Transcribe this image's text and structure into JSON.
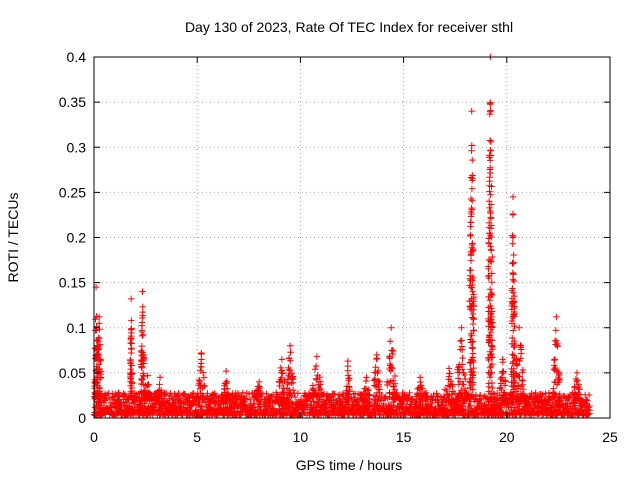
{
  "chart_data": {
    "type": "scatter",
    "title": "Day 130 of 2023, Rate Of TEC Index for receiver sthl",
    "xlabel": "GPS time / hours",
    "ylabel": "ROTI / TECUs",
    "xlim": [
      0,
      25
    ],
    "ylim": [
      0,
      0.4
    ],
    "xticks": [
      0,
      5,
      10,
      15,
      20,
      25
    ],
    "xtick_labels": [
      "0",
      "5",
      "10",
      "15",
      "20",
      "25"
    ],
    "yticks": [
      0,
      0.05,
      0.1,
      0.15,
      0.2,
      0.25,
      0.3,
      0.35,
      0.4
    ],
    "ytick_labels": [
      "0",
      "0.05",
      "0.1",
      "0.15",
      "0.2",
      "0.25",
      "0.3",
      "0.35",
      "0.4"
    ],
    "grid": true,
    "marker": "+",
    "color": "#ff0000",
    "series": [
      {
        "name": "ROTI",
        "baseline": {
          "x_start": 0,
          "x_end": 24,
          "step": 0.02,
          "typical_max": 0.025
        },
        "bursts": [
          {
            "x": 0.1,
            "peak": 0.145,
            "width": 0.15
          },
          {
            "x": 0.25,
            "peak": 0.112,
            "width": 0.2
          },
          {
            "x": 1.8,
            "peak": 0.132,
            "width": 0.1
          },
          {
            "x": 2.35,
            "peak": 0.14,
            "width": 0.15
          },
          {
            "x": 2.6,
            "peak": 0.047,
            "width": 0.3
          },
          {
            "x": 3.2,
            "peak": 0.045,
            "width": 0.3
          },
          {
            "x": 5.2,
            "peak": 0.072,
            "width": 0.3
          },
          {
            "x": 6.4,
            "peak": 0.052,
            "width": 0.2
          },
          {
            "x": 8.0,
            "peak": 0.04,
            "width": 0.3
          },
          {
            "x": 9.1,
            "peak": 0.065,
            "width": 0.3
          },
          {
            "x": 9.5,
            "peak": 0.08,
            "width": 0.3
          },
          {
            "x": 10.8,
            "peak": 0.068,
            "width": 0.4
          },
          {
            "x": 12.3,
            "peak": 0.063,
            "width": 0.2
          },
          {
            "x": 13.2,
            "peak": 0.045,
            "width": 0.3
          },
          {
            "x": 13.7,
            "peak": 0.07,
            "width": 0.3
          },
          {
            "x": 14.4,
            "peak": 0.1,
            "width": 0.4
          },
          {
            "x": 15.8,
            "peak": 0.045,
            "width": 0.3
          },
          {
            "x": 17.2,
            "peak": 0.055,
            "width": 0.4
          },
          {
            "x": 17.8,
            "peak": 0.1,
            "width": 0.4
          },
          {
            "x": 18.3,
            "peak": 0.34,
            "width": 0.2
          },
          {
            "x": 19.2,
            "peak": 0.4,
            "width": 0.2
          },
          {
            "x": 19.8,
            "peak": 0.065,
            "width": 0.3
          },
          {
            "x": 20.3,
            "peak": 0.245,
            "width": 0.15
          },
          {
            "x": 20.6,
            "peak": 0.1,
            "width": 0.4
          },
          {
            "x": 22.4,
            "peak": 0.112,
            "width": 0.3
          },
          {
            "x": 23.4,
            "peak": 0.05,
            "width": 0.3
          }
        ]
      }
    ]
  }
}
